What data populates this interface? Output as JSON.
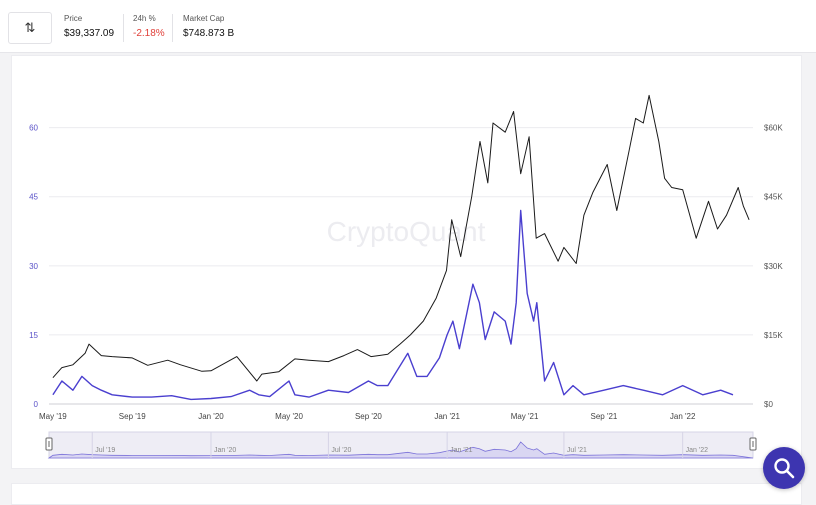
{
  "header": {
    "swap_icon": "swap-vertical-icon",
    "stats": [
      {
        "label": "Price",
        "value": "$39,337.09"
      },
      {
        "label": "24h %",
        "value": "-2.18%",
        "color": "#e0413a"
      },
      {
        "label": "Market Cap",
        "value": "$748.873 B"
      }
    ]
  },
  "watermark": "CryptoQuant",
  "fab_icon": "search-icon",
  "chart_data": {
    "type": "line",
    "series": [
      {
        "axis": "left",
        "color": "#4a3fcf",
        "x": [
          "2019-05-01",
          "2019-05-15",
          "2019-06-01",
          "2019-06-15",
          "2019-07-01",
          "2019-07-15",
          "2019-08-01",
          "2019-09-01",
          "2019-10-01",
          "2019-11-01",
          "2019-12-01",
          "2020-01-01",
          "2020-02-01",
          "2020-03-01",
          "2020-03-15",
          "2020-04-01",
          "2020-05-01",
          "2020-05-10",
          "2020-06-01",
          "2020-07-01",
          "2020-08-01",
          "2020-09-01",
          "2020-09-15",
          "2020-10-01",
          "2020-11-01",
          "2020-11-15",
          "2020-12-01",
          "2020-12-20",
          "2021-01-01",
          "2021-01-10",
          "2021-01-20",
          "2021-02-01",
          "2021-02-10",
          "2021-02-20",
          "2021-03-01",
          "2021-03-15",
          "2021-04-01",
          "2021-04-10",
          "2021-04-18",
          "2021-04-25",
          "2021-05-05",
          "2021-05-15",
          "2021-05-20",
          "2021-06-01",
          "2021-06-15",
          "2021-07-01",
          "2021-07-15",
          "2021-08-01",
          "2021-09-01",
          "2021-10-01",
          "2021-11-01",
          "2021-12-01",
          "2022-01-01",
          "2022-02-01",
          "2022-03-01",
          "2022-03-20"
        ],
        "y": [
          2,
          5,
          3,
          6,
          4,
          3,
          2,
          1.5,
          1.5,
          1.8,
          1,
          1.2,
          1.6,
          3,
          2,
          1.6,
          5,
          2,
          1.5,
          3,
          2.5,
          5,
          4,
          4,
          11,
          6,
          6,
          10,
          15,
          18,
          12,
          20,
          26,
          22,
          14,
          20,
          18,
          13,
          22,
          42,
          24,
          18,
          22,
          5,
          9,
          2,
          4,
          2,
          3,
          4,
          3,
          2,
          4,
          2,
          3,
          2
        ]
      },
      {
        "axis": "right",
        "color": "#1a1a1a",
        "x": [
          "2019-05-01",
          "2019-05-15",
          "2019-06-01",
          "2019-06-20",
          "2019-06-26",
          "2019-07-15",
          "2019-08-01",
          "2019-09-01",
          "2019-09-25",
          "2019-10-26",
          "2019-11-15",
          "2019-12-18",
          "2020-01-01",
          "2020-02-10",
          "2020-03-12",
          "2020-03-20",
          "2020-04-15",
          "2020-05-10",
          "2020-06-01",
          "2020-07-01",
          "2020-07-25",
          "2020-08-15",
          "2020-09-05",
          "2020-10-01",
          "2020-10-20",
          "2020-11-05",
          "2020-11-25",
          "2020-12-15",
          "2020-12-31",
          "2021-01-08",
          "2021-01-22",
          "2021-02-08",
          "2021-02-21",
          "2021-03-05",
          "2021-03-13",
          "2021-04-01",
          "2021-04-14",
          "2021-04-25",
          "2021-05-08",
          "2021-05-19",
          "2021-06-01",
          "2021-06-22",
          "2021-07-01",
          "2021-07-20",
          "2021-08-01",
          "2021-08-15",
          "2021-09-06",
          "2021-09-21",
          "2021-10-10",
          "2021-10-20",
          "2021-11-01",
          "2021-11-10",
          "2021-11-25",
          "2021-12-04",
          "2021-12-15",
          "2022-01-01",
          "2022-01-22",
          "2022-02-10",
          "2022-02-24",
          "2022-03-10",
          "2022-03-28",
          "2022-04-05",
          "2022-04-14"
        ],
        "y": [
          5700,
          7900,
          8500,
          11000,
          13000,
          10500,
          10300,
          10000,
          8400,
          9500,
          8500,
          7100,
          7200,
          10300,
          5000,
          6500,
          7000,
          9800,
          9500,
          9200,
          10500,
          11800,
          10300,
          10800,
          13000,
          15000,
          18000,
          23000,
          29000,
          40000,
          32000,
          45000,
          57000,
          48000,
          61000,
          59000,
          63500,
          50000,
          58000,
          36000,
          37000,
          31000,
          34000,
          30500,
          41000,
          46000,
          52000,
          42000,
          55000,
          62000,
          61000,
          67000,
          57000,
          49000,
          47000,
          46500,
          36000,
          44000,
          38000,
          41000,
          47000,
          43000,
          40000
        ]
      }
    ],
    "x_ticks": [
      "May '19",
      "Sep '19",
      "Jan '20",
      "May '20",
      "Sep '20",
      "Jan '21",
      "May '21",
      "Sep '21",
      "Jan '22"
    ],
    "x_tick_dates": [
      "2019-05-01",
      "2019-09-01",
      "2020-01-01",
      "2020-05-01",
      "2020-09-01",
      "2021-01-01",
      "2021-05-01",
      "2021-09-01",
      "2022-01-01"
    ],
    "y_left_ticks": [
      "0",
      "15",
      "30",
      "45",
      "60"
    ],
    "y_left_values": [
      0,
      15,
      30,
      45,
      60
    ],
    "y_right_ticks": [
      "$0",
      "$15K",
      "$30K",
      "$45K",
      "$60K"
    ],
    "y_right_values": [
      0,
      15000,
      30000,
      45000,
      60000
    ],
    "ylim_left": [
      0,
      66
    ],
    "ylim_right": [
      0,
      66000
    ],
    "x_range": [
      "2019-04-25",
      "2022-04-20"
    ],
    "grid": "horizontal",
    "navigator_ticks": [
      "Jul '19",
      "Jan '20",
      "Jul '20",
      "Jan '21",
      "Jul '21",
      "Jan '22"
    ],
    "navigator_tick_dates": [
      "2019-07-01",
      "2020-01-01",
      "2020-07-01",
      "2021-01-01",
      "2021-07-01",
      "2022-01-01"
    ]
  }
}
